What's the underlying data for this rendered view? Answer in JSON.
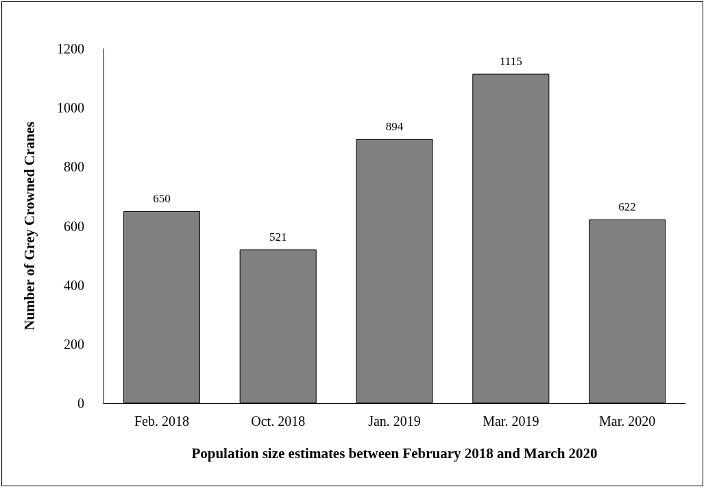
{
  "chart_data": {
    "type": "bar",
    "xlabel": "Population size estimates between February 2018 and March 2020",
    "ylabel": "Number of Grey Crowned Cranes",
    "categories": [
      "Feb. 2018",
      "Oct. 2018",
      "Jan. 2019",
      "Mar. 2019",
      "Mar. 2020"
    ],
    "values": [
      650,
      521,
      894,
      1115,
      622
    ],
    "color": "#808080",
    "ylim": [
      0,
      1200
    ],
    "yticks": [
      0,
      200,
      400,
      600,
      800,
      1000,
      1200
    ],
    "grid": false,
    "data_labels": true
  }
}
